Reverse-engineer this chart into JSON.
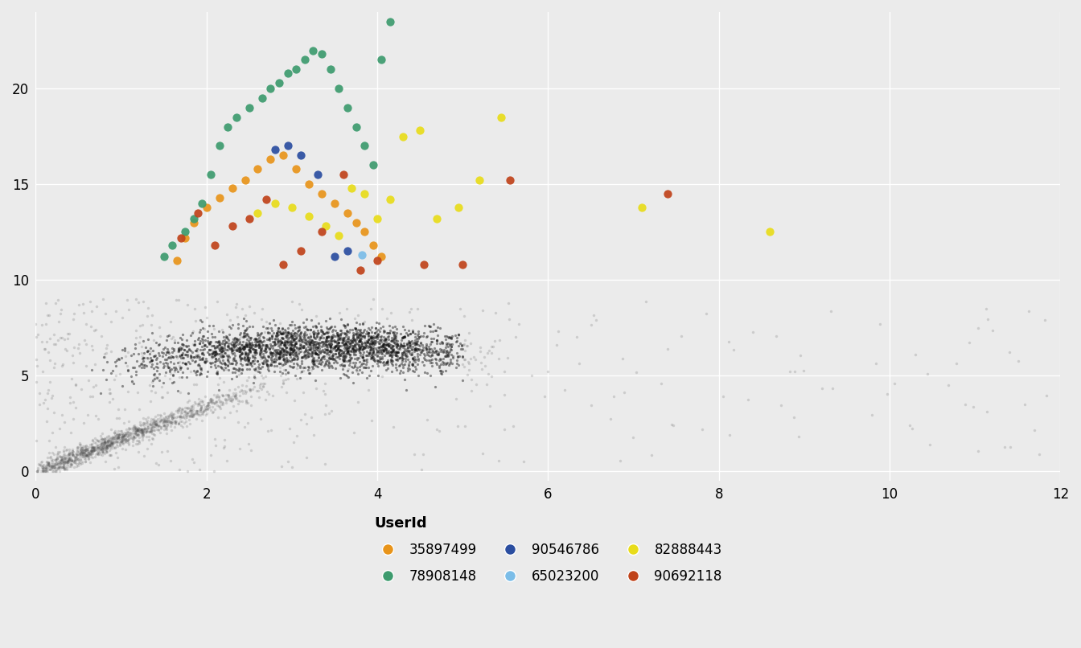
{
  "xlim": [
    0,
    12
  ],
  "ylim": [
    -0.5,
    24
  ],
  "xticks": [
    0,
    2,
    4,
    6,
    8,
    10,
    12
  ],
  "yticks": [
    0,
    5,
    10,
    15,
    20
  ],
  "bg_color": "#EBEBEB",
  "grid_color": "#FFFFFF",
  "user_colors": {
    "35897499": "#E8941A",
    "78908148": "#3D9B6E",
    "90546786": "#2B4EA0",
    "65023200": "#7BBDE8",
    "82888443": "#E8DC1A",
    "90692118": "#C0431A"
  },
  "legend_title": "UserId",
  "legend_order": [
    "35897499",
    "78908148",
    "90546786",
    "65023200",
    "82888443",
    "90692118"
  ],
  "seed": 42
}
